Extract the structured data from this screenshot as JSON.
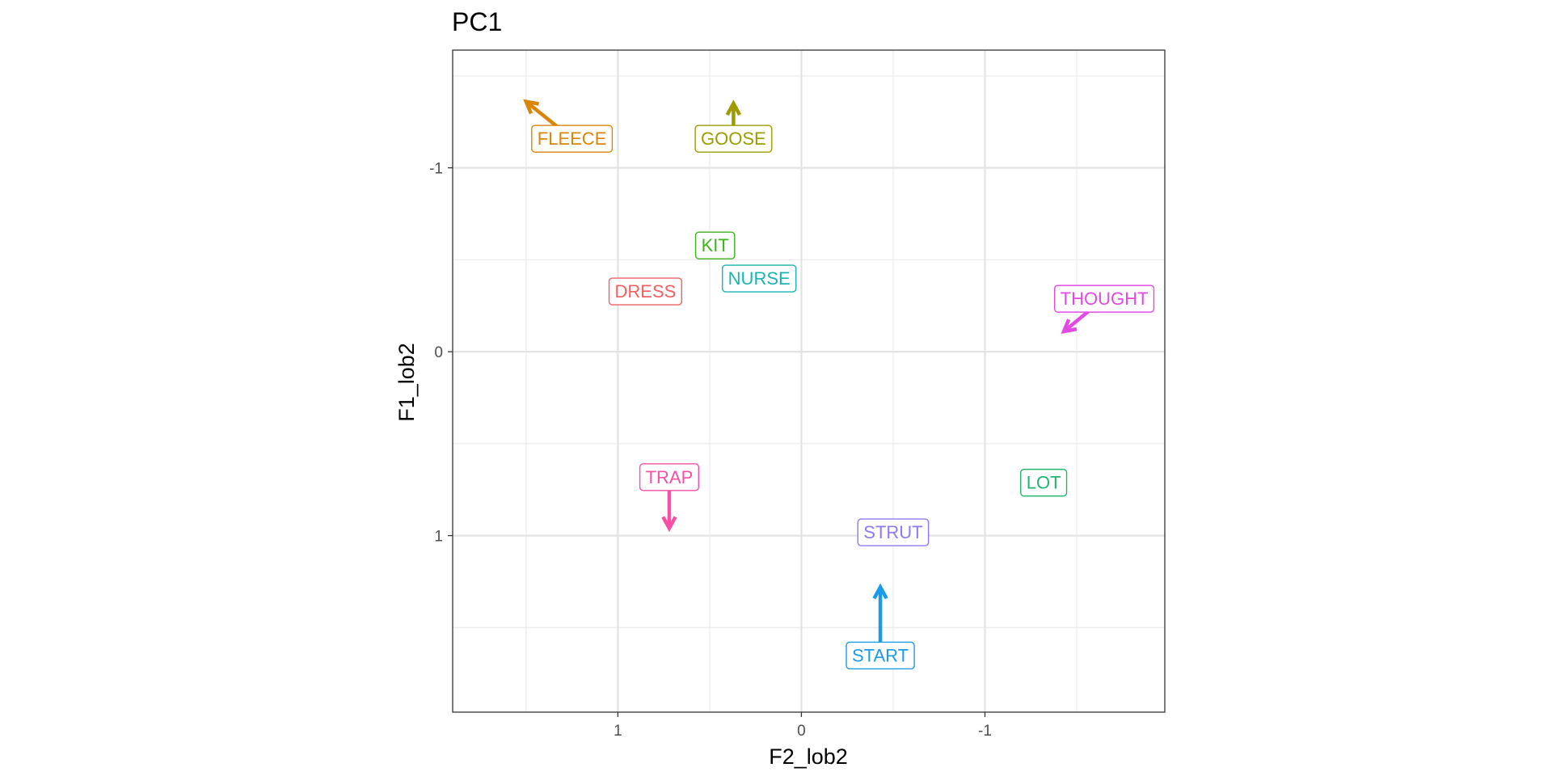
{
  "chart_data": {
    "type": "scatter",
    "title": "PC1",
    "xlabel": "F2_lob2",
    "ylabel": "F1_lob2",
    "x_reversed": true,
    "y_reversed": true,
    "xlim": [
      1.9,
      -1.98
    ],
    "ylim": [
      -1.64,
      1.96
    ],
    "x_ticks": [
      1,
      0,
      -1
    ],
    "x_tick_labels": [
      "1",
      "0",
      "-1"
    ],
    "y_ticks": [
      -1,
      0,
      1
    ],
    "y_tick_labels": [
      "-1",
      "0",
      "1"
    ],
    "grid": true,
    "legend": "none",
    "points": [
      {
        "label": "FLEECE",
        "x": 1.25,
        "y": -1.16,
        "color": "#d98508",
        "arrow": {
          "dx": 0.25,
          "dy": -0.2
        }
      },
      {
        "label": "GOOSE",
        "x": 0.37,
        "y": -1.16,
        "color": "#9c9c00",
        "arrow": {
          "dx": 0.0,
          "dy": -0.19
        }
      },
      {
        "label": "KIT",
        "x": 0.47,
        "y": -0.58,
        "color": "#3ab418",
        "arrow": null
      },
      {
        "label": "NURSE",
        "x": 0.23,
        "y": -0.4,
        "color": "#18b3b3",
        "arrow": null
      },
      {
        "label": "DRESS",
        "x": 0.85,
        "y": -0.33,
        "color": "#ef6060",
        "arrow": null
      },
      {
        "label": "THOUGHT",
        "x": -1.65,
        "y": -0.29,
        "color": "#e34ae3",
        "arrow": {
          "dx": 0.22,
          "dy": 0.18
        }
      },
      {
        "label": "TRAP",
        "x": 0.72,
        "y": 0.68,
        "color": "#f54fa6",
        "arrow": {
          "dx": 0.0,
          "dy": 0.28
        }
      },
      {
        "label": "LOT",
        "x": -1.32,
        "y": 0.71,
        "color": "#22b56f",
        "arrow": null
      },
      {
        "label": "STRUT",
        "x": -0.5,
        "y": 0.98,
        "color": "#8f78f4",
        "arrow": null
      },
      {
        "label": "START",
        "x": -0.43,
        "y": 1.65,
        "color": "#1a9ae8",
        "arrow": {
          "dx": 0.0,
          "dy": -0.37
        }
      }
    ]
  }
}
